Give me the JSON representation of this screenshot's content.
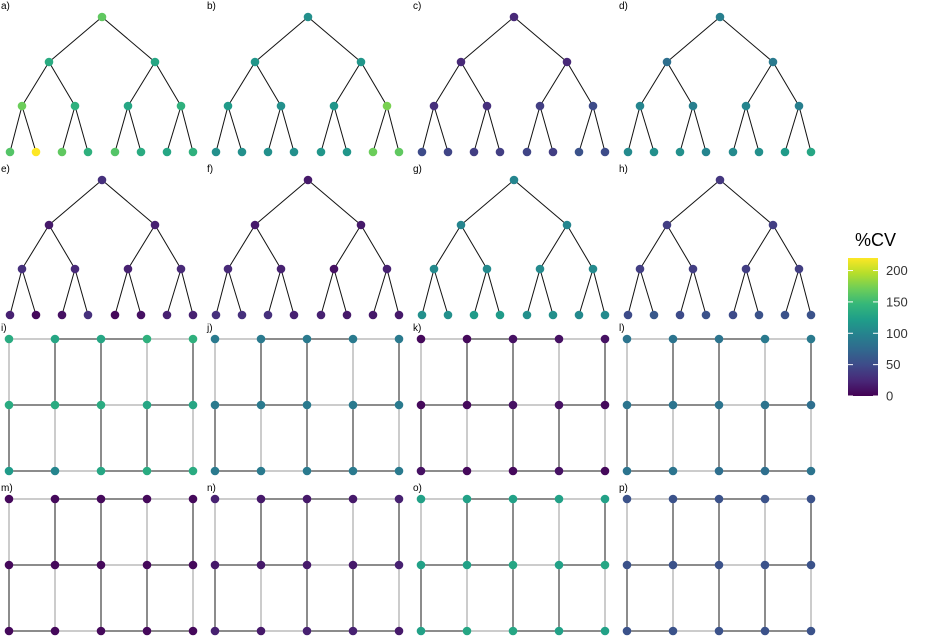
{
  "chart_data": {
    "type": "network",
    "colorscale": {
      "name": "viridis",
      "title": "%CV",
      "range": [
        0,
        220
      ],
      "ticks": [
        0,
        50,
        100,
        150,
        200
      ],
      "tick_labels": [
        "0",
        "50",
        "100",
        "150",
        "200"
      ]
    },
    "panels": [
      {
        "label": "a)",
        "layout": "tree",
        "cv": [
          165,
          135,
          130,
          170,
          140,
          130,
          140,
          160,
          220,
          165,
          140,
          160,
          135,
          130,
          140
        ]
      },
      {
        "label": "b)",
        "layout": "tree",
        "cv": [
          110,
          115,
          115,
          120,
          110,
          115,
          175,
          110,
          110,
          110,
          110,
          115,
          115,
          170,
          165
        ]
      },
      {
        "label": "c)",
        "layout": "tree",
        "cv": [
          25,
          25,
          25,
          30,
          30,
          40,
          50,
          50,
          45,
          40,
          40,
          45,
          40,
          55,
          50
        ]
      },
      {
        "label": "d)",
        "layout": "tree",
        "cv": [
          95,
          80,
          90,
          100,
          95,
          100,
          95,
          105,
          110,
          110,
          100,
          105,
          110,
          120,
          130
        ]
      },
      {
        "label": "e)",
        "layout": "tree",
        "cv": [
          30,
          15,
          20,
          30,
          25,
          20,
          25,
          20,
          5,
          10,
          30,
          5,
          10,
          20,
          20
        ]
      },
      {
        "label": "f)",
        "layout": "tree",
        "cv": [
          15,
          15,
          15,
          25,
          20,
          10,
          20,
          30,
          30,
          30,
          20,
          20,
          15,
          15,
          15
        ]
      },
      {
        "label": "g)",
        "layout": "tree",
        "cv": [
          100,
          100,
          100,
          105,
          105,
          105,
          105,
          110,
          110,
          120,
          120,
          110,
          110,
          105,
          105
        ]
      },
      {
        "label": "h)",
        "layout": "tree",
        "cv": [
          35,
          40,
          40,
          40,
          40,
          40,
          40,
          50,
          60,
          50,
          55,
          50,
          55,
          55,
          55
        ]
      },
      {
        "label": "i)",
        "layout": "grid",
        "cv": [
          135,
          130,
          130,
          140,
          140,
          135,
          135,
          135,
          130,
          130,
          120,
          100,
          130,
          135,
          135
        ]
      },
      {
        "label": "j)",
        "layout": "grid",
        "cv": [
          90,
          90,
          90,
          90,
          90,
          90,
          90,
          90,
          90,
          90,
          90,
          90,
          90,
          90,
          90
        ]
      },
      {
        "label": "k)",
        "layout": "grid",
        "cv": [
          5,
          5,
          10,
          10,
          10,
          5,
          5,
          10,
          10,
          5,
          10,
          5,
          5,
          10,
          5
        ]
      },
      {
        "label": "l)",
        "layout": "grid",
        "cv": [
          85,
          85,
          85,
          90,
          90,
          85,
          85,
          85,
          85,
          80,
          85,
          85,
          80,
          80,
          85
        ]
      },
      {
        "label": "m)",
        "layout": "grid",
        "cv": [
          5,
          5,
          5,
          5,
          5,
          5,
          5,
          5,
          5,
          5,
          5,
          5,
          5,
          5,
          5
        ]
      },
      {
        "label": "n)",
        "layout": "grid",
        "cv": [
          20,
          15,
          15,
          15,
          20,
          15,
          15,
          15,
          15,
          20,
          20,
          15,
          20,
          20,
          15
        ]
      },
      {
        "label": "o)",
        "layout": "grid",
        "cv": [
          125,
          125,
          125,
          125,
          125,
          125,
          125,
          130,
          125,
          130,
          125,
          130,
          130,
          125,
          125
        ]
      },
      {
        "label": "p)",
        "layout": "grid",
        "cv": [
          55,
          55,
          55,
          55,
          55,
          55,
          55,
          55,
          55,
          55,
          55,
          55,
          55,
          55,
          55
        ]
      }
    ]
  }
}
